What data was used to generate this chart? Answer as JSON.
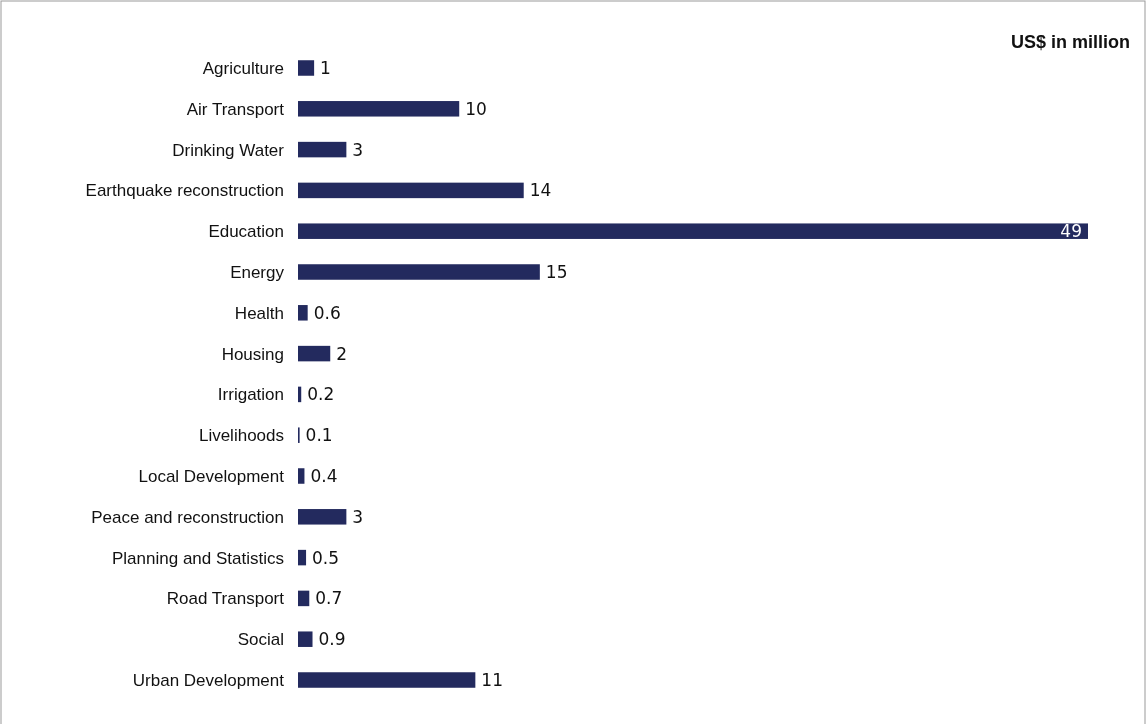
{
  "chart_data": {
    "type": "bar",
    "orientation": "horizontal",
    "title": "US$ in million",
    "categories": [
      "Agriculture",
      "Air Transport",
      "Drinking Water",
      "Earthquake reconstruction",
      "Education",
      "Energy",
      "Health",
      "Housing",
      "Irrigation",
      "Livelihoods",
      "Local Development",
      "Peace and reconstruction",
      "Planning and Statistics",
      "Road Transport",
      "Social",
      "Urban Development"
    ],
    "values": [
      1,
      10,
      3,
      14,
      49,
      15,
      0.6,
      2,
      0.2,
      0.1,
      0.4,
      3,
      0.5,
      0.7,
      0.9,
      11
    ],
    "color": "#232a5e",
    "data_labels": true
  }
}
